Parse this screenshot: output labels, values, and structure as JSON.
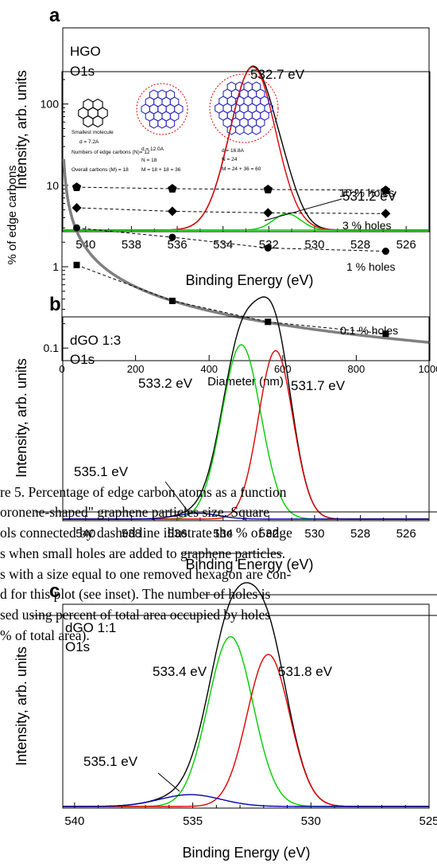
{
  "panels": {
    "a": {
      "letter": "a",
      "label1": "HGO",
      "label2": "O1s",
      "xlabel": "Binding Energy (eV)",
      "ylabel": "Intensity, arb. units",
      "peak_main": "532.7 eV",
      "peak_minor": "531.2 eV",
      "xticks": [
        "540",
        "538",
        "536",
        "534",
        "532",
        "530",
        "528",
        "526"
      ]
    },
    "b": {
      "letter": "b",
      "label1": "dGO 1:3",
      "label2": "O1s",
      "xlabel": "Binding Energy (eV)",
      "ylabel": "Intensity, arb. units",
      "peak_left": "533.2 eV",
      "peak_right": "531.7 eV",
      "peak_small": "535.1 eV",
      "xticks": [
        "540",
        "538",
        "536",
        "534",
        "532",
        "530",
        "528",
        "526"
      ]
    },
    "c": {
      "letter": "c",
      "label1": "dGO 1:1",
      "label2": "O1s",
      "xlabel": "Binding Energy (eV)",
      "ylabel": "Intensity, arb. units",
      "peak_left": "533.4 eV",
      "peak_right": "531.8 eV",
      "peak_small": "535.1 eV",
      "xticks": [
        "540",
        "535",
        "530",
        "525"
      ]
    }
  },
  "edge_plot": {
    "ylabel": "% of edge carbons",
    "xlabel": "Diameter (nm)",
    "yticks": [
      "100",
      "10",
      "1",
      "0.1"
    ],
    "xticks": [
      "0",
      "200",
      "400",
      "600",
      "800",
      "1000"
    ],
    "holes": [
      "10 % holes",
      "3 % holes",
      "1 % holes",
      "0.1 % holes"
    ],
    "molecules": [
      {
        "caption": "Smallest molecule",
        "d": "d = 7.2A",
        "n": "Numbers of edge carbons (N)= 12",
        "m": "Overall carbons (M) = 18"
      },
      {
        "d": "d = 12.0A",
        "n": "N = 18",
        "m": "M = 18 + 18 = 36"
      },
      {
        "d": "d = 16.8A",
        "n": "N = 24",
        "m": "M = 24 + 36 = 60"
      }
    ]
  },
  "caption_lines": [
    "re 5.  Percentage of edge carbon atoms as a function",
    "oronene-shaped\" graphene particles size. Square",
    "ols connected by dashed line illustrate the % of edge",
    "s when small holes are added to graphene particles.",
    "s with a size equal to one removed hexagon are con-",
    "d for this plot (see inset). The number of holes is",
    "sed using percent of total area occupied by holes",
    "% of total area)."
  ],
  "chart_data": [
    {
      "type": "line",
      "title": "HGO O1s",
      "xlabel": "Binding Energy (eV)",
      "ylabel": "Intensity, arb. units",
      "xlim": [
        541,
        525
      ],
      "series": [
        {
          "color": "#000000",
          "gaussians": [
            [
              532.7,
              1.0,
              1.0
            ],
            [
              531.2,
              0.1,
              0.6
            ]
          ]
        },
        {
          "color": "#dd0000",
          "gaussians": [
            [
              532.7,
              1.0,
              1.0
            ]
          ]
        },
        {
          "color": "#00cc00",
          "gaussians": [
            [
              531.2,
              0.1,
              0.6
            ]
          ]
        }
      ],
      "annotations": [
        "532.7 eV",
        "531.2 eV"
      ]
    },
    {
      "type": "line",
      "title": "dGO 1:3 O1s",
      "xlabel": "Binding Energy (eV)",
      "ylabel": "Intensity, arb. units",
      "xlim": [
        541,
        525
      ],
      "series": [
        {
          "color": "#000000",
          "gaussians": [
            [
              533.2,
              0.89,
              0.85
            ],
            [
              531.7,
              0.86,
              0.75
            ],
            [
              535.1,
              0.03,
              0.9
            ]
          ]
        },
        {
          "color": "#00cc00",
          "gaussians": [
            [
              533.2,
              0.89,
              0.85
            ]
          ]
        },
        {
          "color": "#dd0000",
          "gaussians": [
            [
              531.7,
              0.86,
              0.75
            ]
          ]
        },
        {
          "color": "#0000aa",
          "gaussians": [
            [
              535.1,
              0.03,
              0.9
            ]
          ]
        }
      ],
      "annotations": [
        "533.2 eV",
        "531.7 eV",
        "535.1 eV"
      ]
    },
    {
      "type": "line",
      "title": "dGO 1:1 O1s",
      "xlabel": "Binding Energy (eV)",
      "ylabel": "Intensity, arb. units",
      "xlim": [
        540.5,
        525
      ],
      "series": [
        {
          "color": "#000000",
          "gaussians": [
            [
              533.4,
              0.86,
              0.95
            ],
            [
              531.8,
              0.77,
              0.9
            ],
            [
              535.1,
              0.06,
              1.3
            ]
          ]
        },
        {
          "color": "#00cc00",
          "gaussians": [
            [
              533.4,
              0.86,
              0.95
            ]
          ]
        },
        {
          "color": "#dd0000",
          "gaussians": [
            [
              531.8,
              0.77,
              0.9
            ]
          ]
        },
        {
          "color": "#0000aa",
          "gaussians": [
            [
              535.1,
              0.06,
              1.3
            ]
          ]
        }
      ],
      "annotations": [
        "533.4 eV",
        "531.8 eV",
        "535.1 eV"
      ]
    },
    {
      "type": "line",
      "xlabel": "Diameter (nm)",
      "ylabel": "% of edge carbons",
      "xlim": [
        0,
        1000
      ],
      "ylim": [
        0.07,
        250
      ],
      "yscale": "log",
      "series": [
        {
          "name": "10 % holes",
          "marker": "pentagon",
          "x": [
            40,
            300,
            560,
            880
          ],
          "y": [
            9.5,
            9.1,
            8.9,
            8.7
          ]
        },
        {
          "name": "3 % holes",
          "marker": "diamond",
          "x": [
            40,
            300,
            560,
            880
          ],
          "y": [
            5.3,
            4.8,
            4.6,
            4.5
          ]
        },
        {
          "name": "1 % holes",
          "marker": "circle",
          "x": [
            40,
            300,
            560,
            880
          ],
          "y": [
            3.0,
            2.3,
            1.7,
            1.55
          ]
        },
        {
          "name": "0.1 % holes",
          "marker": "square",
          "x": [
            40,
            300,
            560,
            880
          ],
          "y": [
            1.05,
            0.38,
            0.21,
            0.15
          ]
        },
        {
          "color": "#808080",
          "function": "edge_fraction",
          "x_range": [
            5,
            1000
          ]
        }
      ]
    }
  ]
}
